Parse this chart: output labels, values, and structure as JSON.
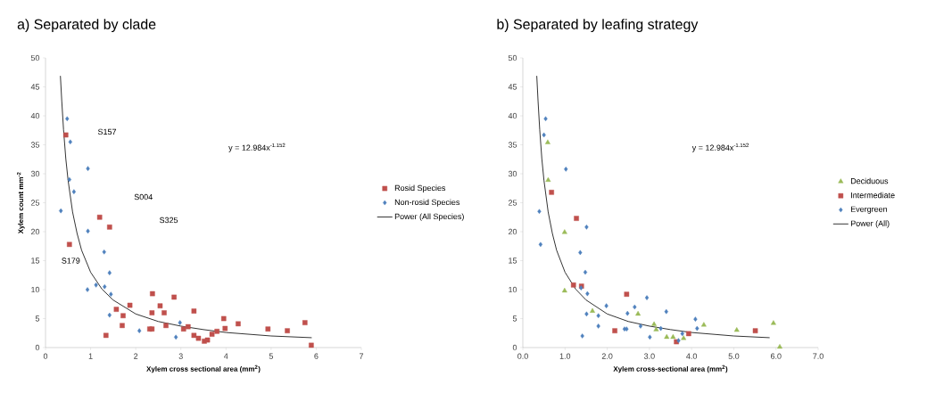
{
  "chart_data": [
    {
      "type": "scatter",
      "title": "a) Separated by clade",
      "xlabel": "Xylem cross sectional area (mm$^{2}$)",
      "ylabel": "Xylem count  mm$^{-2}$",
      "xlim": [
        0,
        7
      ],
      "ylim": [
        0,
        50
      ],
      "xticks": [
        0,
        1,
        2,
        3,
        4,
        5,
        6,
        7
      ],
      "yticks": [
        0,
        5,
        10,
        15,
        20,
        25,
        30,
        35,
        40,
        45,
        50
      ],
      "grid": false,
      "legend": "right",
      "annotations": [
        "S157",
        "S004",
        "S325",
        "S179",
        "y = 12.984x$^{-1.152}$"
      ],
      "series": [
        {
          "name": "Rosid Species",
          "marker": "square",
          "color": "#c0504d",
          "x": [
            0.45,
            0.53,
            1.2,
            1.42,
            1.57,
            1.72,
            1.87,
            1.7,
            1.34,
            2.37,
            2.36,
            2.54,
            2.63,
            2.31,
            2.36,
            2.67,
            2.85,
            3.29,
            3.16,
            3.06,
            3.29,
            3.39,
            3.52,
            3.59,
            3.69,
            3.8,
            3.95,
            3.98,
            4.27,
            4.93,
            5.36,
            5.75,
            5.89
          ],
          "values": [
            36.7,
            17.8,
            22.5,
            20.8,
            6.6,
            5.5,
            7.3,
            3.8,
            2.1,
            9.3,
            6.0,
            7.2,
            6.0,
            3.2,
            3.2,
            3.8,
            8.7,
            6.3,
            3.6,
            3.2,
            2.1,
            1.6,
            1.1,
            1.3,
            2.3,
            2.8,
            5.0,
            3.3,
            4.1,
            3.2,
            2.9,
            4.3,
            0.4
          ]
        },
        {
          "name": "Non-rosid Species",
          "marker": "diamond",
          "color": "#4f81bd",
          "x": [
            0.48,
            0.55,
            0.94,
            0.53,
            0.63,
            0.34,
            0.94,
            1.3,
            1.42,
            0.93,
            1.12,
            1.31,
            1.45,
            1.42,
            2.98,
            2.08,
            2.89
          ],
          "values": [
            39.5,
            35.5,
            30.9,
            29.0,
            26.9,
            23.6,
            20.1,
            16.5,
            12.9,
            10.0,
            10.8,
            10.5,
            9.2,
            5.6,
            4.3,
            2.9,
            1.8
          ]
        },
        {
          "name": "Power (All Species)",
          "type": "line",
          "marker": "none",
          "color": "#000000",
          "x": [
            0.33,
            0.36,
            0.4,
            0.45,
            0.5,
            0.6,
            0.7,
            0.8,
            1.0,
            1.25,
            1.5,
            2.0,
            2.5,
            3.0,
            3.5,
            4.0,
            5.0,
            5.9
          ],
          "values": [
            46.9,
            42.6,
            37.6,
            32.6,
            28.9,
            23.4,
            19.7,
            16.8,
            13.0,
            10.1,
            8.2,
            5.8,
            4.5,
            3.7,
            3.1,
            2.6,
            2.0,
            1.7
          ]
        }
      ]
    },
    {
      "type": "scatter",
      "title": "b) Separated by leafing strategy",
      "xlabel": "Xylem cross-sectional area (mm$^{2}$)",
      "xlim": [
        0,
        7
      ],
      "ylim": [
        0,
        50
      ],
      "xticks": [
        {
          "value": 0,
          "label": "0.0"
        },
        {
          "value": 1,
          "label": "1.0"
        },
        {
          "value": 2,
          "label": "2.0"
        },
        {
          "value": 3,
          "label": "3.0"
        },
        {
          "value": 4,
          "label": "4.0"
        },
        {
          "value": 5,
          "label": "5.0"
        },
        {
          "value": 6,
          "label": "6.0"
        },
        {
          "value": 7,
          "label": "7.0"
        }
      ],
      "yticks": [
        0,
        5,
        10,
        15,
        20,
        25,
        30,
        35,
        40,
        45,
        50
      ],
      "grid": false,
      "legend": "right",
      "annotations": [
        "y = 12.984x$^{-1.152}$"
      ],
      "series": [
        {
          "name": "Deciduous",
          "marker": "triangle",
          "color": "#9bbb59",
          "x": [
            0.59,
            0.6,
            0.99,
            0.99,
            1.65,
            2.73,
            3.11,
            3.16,
            3.41,
            3.56,
            3.81,
            4.29,
            5.07,
            5.94,
            6.09
          ],
          "values": [
            35.4,
            28.9,
            19.9,
            9.8,
            6.3,
            5.8,
            4.0,
            3.1,
            1.8,
            1.8,
            1.6,
            3.9,
            3.0,
            4.2,
            0.1
          ]
        },
        {
          "name": "Intermediate",
          "marker": "square",
          "color": "#c0504d",
          "x": [
            0.68,
            1.27,
            1.2,
            1.39,
            2.46,
            2.18,
            3.64,
            3.93,
            5.51
          ],
          "values": [
            26.8,
            22.3,
            10.8,
            10.6,
            9.2,
            2.9,
            1.0,
            2.4,
            2.9
          ]
        },
        {
          "name": "Evergreen",
          "marker": "diamond",
          "color": "#4f81bd",
          "x": [
            0.54,
            0.5,
            1.02,
            0.39,
            0.42,
            1.51,
            1.36,
            1.48,
            1.38,
            1.53,
            1.51,
            1.41,
            1.79,
            1.79,
            1.98,
            2.48,
            2.65,
            2.94,
            2.41,
            2.46,
            2.79,
            3.01,
            3.4,
            3.27,
            3.69,
            3.78,
            4.09,
            4.13
          ],
          "values": [
            39.5,
            36.7,
            30.8,
            23.5,
            17.8,
            20.8,
            16.4,
            13.0,
            10.3,
            9.3,
            5.8,
            2.0,
            5.5,
            3.7,
            7.2,
            5.9,
            7.0,
            8.6,
            3.2,
            3.2,
            3.7,
            1.8,
            6.2,
            3.3,
            1.2,
            2.4,
            4.9,
            3.3
          ]
        },
        {
          "name": "Power (All)",
          "type": "line",
          "marker": "none",
          "color": "#000000",
          "x": [
            0.33,
            0.36,
            0.4,
            0.45,
            0.5,
            0.6,
            0.7,
            0.8,
            1.0,
            1.25,
            1.5,
            2.0,
            2.5,
            3.0,
            3.5,
            4.0,
            5.0,
            5.85
          ],
          "values": [
            46.9,
            42.6,
            37.6,
            32.6,
            28.9,
            23.4,
            19.7,
            16.8,
            13.0,
            10.1,
            8.2,
            5.8,
            4.5,
            3.7,
            3.1,
            2.6,
            2.0,
            1.7
          ]
        }
      ]
    }
  ]
}
